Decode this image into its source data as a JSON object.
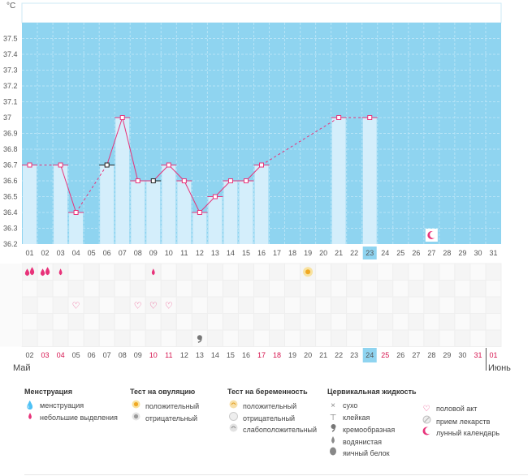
{
  "chart_data": {
    "type": "bar",
    "unit_label": "°C",
    "y_ticks": [
      "36.2",
      "36.3",
      "36.4",
      "36.5",
      "36.6",
      "36.7",
      "36.8",
      "36.9",
      "37",
      "37.1",
      "37.2",
      "37.3",
      "37.4",
      "37.5"
    ],
    "ylim": [
      36.2,
      37.6
    ],
    "highlight_day": 23,
    "x_days": [
      "01",
      "02",
      "03",
      "04",
      "05",
      "06",
      "07",
      "08",
      "09",
      "10",
      "11",
      "12",
      "13",
      "14",
      "15",
      "16",
      "17",
      "18",
      "19",
      "20",
      "21",
      "22",
      "23",
      "24",
      "25",
      "26",
      "27",
      "28",
      "29",
      "30",
      "31"
    ],
    "temperatures": [
      36.7,
      null,
      36.7,
      36.4,
      null,
      36.7,
      37.0,
      36.6,
      36.6,
      36.7,
      36.6,
      36.4,
      36.5,
      36.6,
      36.6,
      36.7,
      null,
      null,
      null,
      null,
      37.0,
      null,
      37.0,
      null,
      null,
      null,
      null,
      null,
      null,
      null,
      null
    ],
    "dashed_segments": [
      [
        1,
        3
      ],
      [
        4,
        6
      ],
      [
        16,
        21
      ],
      [
        21,
        23
      ]
    ],
    "black_markers": [
      6,
      9
    ],
    "moon_day": 27,
    "bottom_days": [
      "02",
      "03",
      "04",
      "05",
      "06",
      "07",
      "08",
      "09",
      "10",
      "11",
      "12",
      "13",
      "14",
      "15",
      "16",
      "17",
      "18",
      "19",
      "20",
      "21",
      "22",
      "23",
      "24",
      "25",
      "26",
      "27",
      "28",
      "29",
      "30",
      "31",
      "01"
    ],
    "bottom_red_idx": [
      1,
      2,
      8,
      9,
      15,
      16,
      23,
      29,
      30
    ],
    "bottom_highlight_idx": 22,
    "month_left": "Май",
    "month_right": "Июнь",
    "symptom_rows": [
      {
        "row": 0,
        "icon": "menstruation",
        "days": [
          1,
          2
        ]
      },
      {
        "row": 0,
        "icon": "spotting",
        "days": [
          3,
          9
        ]
      },
      {
        "row": 0,
        "icon": "ovulation-positive",
        "days": [
          19
        ]
      },
      {
        "row": 2,
        "icon": "heart",
        "days": [
          4,
          8,
          9,
          10
        ]
      },
      {
        "row": 4,
        "icon": "creamy",
        "days": [
          12
        ]
      }
    ]
  },
  "legend": {
    "menstruation": {
      "title": "Менструация",
      "items": [
        "менструация",
        "небольшие выделения"
      ]
    },
    "ovulation": {
      "title": "Тест на овуляцию",
      "items": [
        "положительный",
        "отрицательный"
      ]
    },
    "pregnancy": {
      "title": "Тест на беременность",
      "items": [
        "положительный",
        "отрицательный",
        "слабоположительный"
      ]
    },
    "cervical": {
      "title": "Цервикальная жидкость",
      "items": [
        "сухо",
        "клейкая",
        "кремообразная",
        "водянистая",
        "яичный белок"
      ]
    },
    "other": {
      "items": [
        "половой акт",
        "прием лекарств",
        "лунный календарь"
      ]
    }
  }
}
